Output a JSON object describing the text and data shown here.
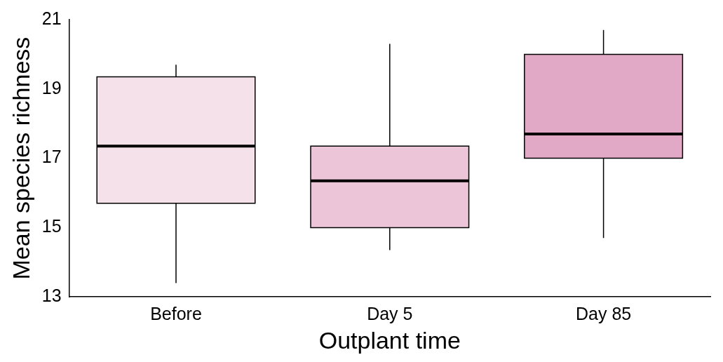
{
  "chart_data": {
    "type": "box",
    "xlabel": "Outplant time",
    "ylabel": "Mean species richness",
    "categories": [
      "Before",
      "Day 5",
      "Day 85"
    ],
    "colors": [
      "#f5e1ea",
      "#ecc5d8",
      "#e2a9c6"
    ],
    "boxes": [
      {
        "low": 13.4,
        "q1": 15.7,
        "median": 17.35,
        "q3": 19.35,
        "high": 19.7
      },
      {
        "low": 14.35,
        "q1": 15.0,
        "median": 16.35,
        "q3": 17.35,
        "high": 20.3
      },
      {
        "low": 14.7,
        "q1": 17.0,
        "median": 17.7,
        "q3": 20.0,
        "high": 20.7
      }
    ],
    "ylim": [
      13,
      21
    ],
    "yticks": [
      13,
      15,
      17,
      19,
      21
    ],
    "grid": false,
    "legend": false
  }
}
